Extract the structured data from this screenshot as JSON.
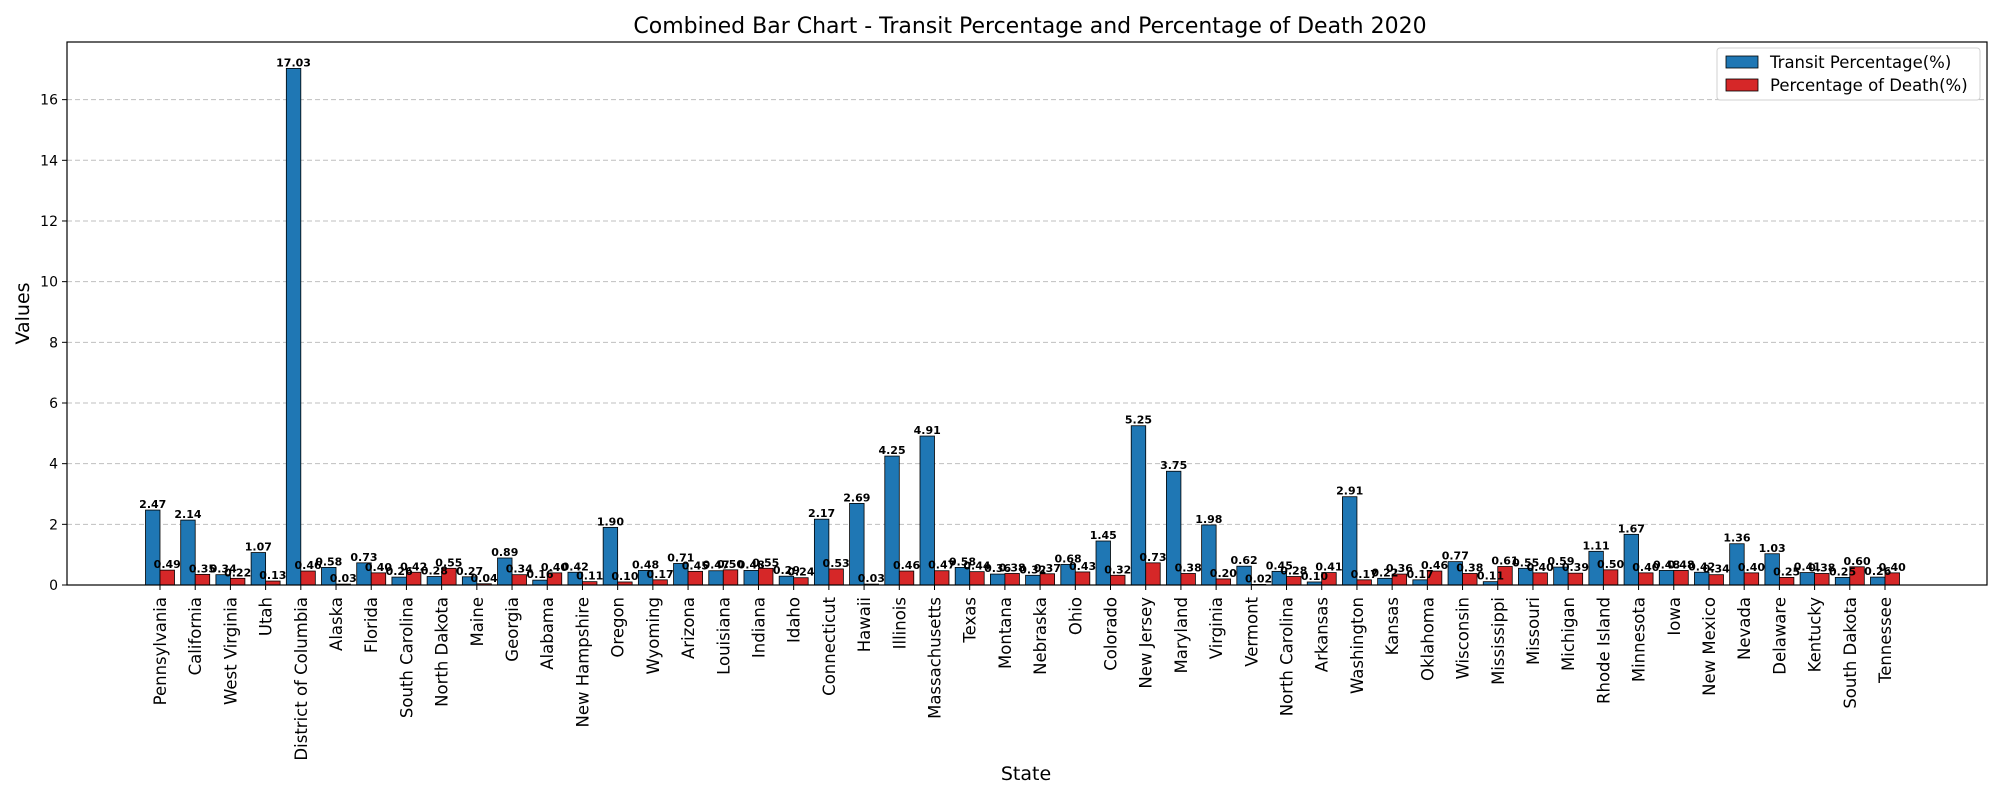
{
  "chart_data": {
    "type": "bar",
    "title": "Combined Bar Chart - Transit Percentage and Percentage of Death 2020",
    "xlabel": "State",
    "ylabel": "Values",
    "ylim": [
      0,
      17.9
    ],
    "yticks": [
      0,
      2,
      4,
      6,
      8,
      10,
      12,
      14,
      16
    ],
    "grid": "y-dashed",
    "legend_position": "top-right",
    "categories": [
      "Pennsylvania",
      "California",
      "West Virginia",
      "Utah",
      "District of Columbia",
      "Alaska",
      "Florida",
      "South Carolina",
      "North Dakota",
      "Maine",
      "Georgia",
      "Alabama",
      "New Hampshire",
      "Oregon",
      "Wyoming",
      "Arizona",
      "Louisiana",
      "Indiana",
      "Idaho",
      "Connecticut",
      "Hawaii",
      "Illinois",
      "Massachusetts",
      "Texas",
      "Montana",
      "Nebraska",
      "Ohio",
      "Colorado",
      "New Jersey",
      "Maryland",
      "Virginia",
      "Vermont",
      "North Carolina",
      "Arkansas",
      "Washington",
      "Kansas",
      "Oklahoma",
      "Wisconsin",
      "Mississippi",
      "Missouri",
      "Michigan",
      "Rhode Island",
      "Minnesota",
      "Iowa",
      "New Mexico",
      "Nevada",
      "Delaware",
      "Kentucky",
      "South Dakota",
      "Tennessee"
    ],
    "series": [
      {
        "name": "Transit Percentage(%)",
        "color": "#1f77b4",
        "values": [
          2.47,
          2.14,
          0.34,
          1.07,
          17.03,
          0.58,
          0.73,
          0.26,
          0.28,
          0.27,
          0.89,
          0.16,
          0.42,
          1.9,
          0.48,
          0.71,
          0.47,
          0.48,
          0.29,
          2.17,
          2.69,
          4.25,
          4.91,
          0.58,
          0.36,
          0.32,
          0.68,
          1.45,
          5.25,
          3.75,
          1.98,
          0.62,
          0.45,
          0.1,
          2.91,
          0.22,
          0.17,
          0.77,
          0.11,
          0.55,
          0.59,
          1.11,
          1.67,
          0.48,
          0.42,
          1.36,
          1.03,
          0.41,
          0.25,
          0.26
        ],
        "labels": [
          "2.47",
          "2.14",
          "0.34",
          "1.07",
          "17.03",
          "0.58",
          "0.73",
          "0.26",
          "0.28",
          "0.27",
          "0.89",
          "0.16",
          "0.42",
          "1.90",
          "0.48",
          "0.71",
          "0.47",
          "0.48",
          "0.29",
          "2.17",
          "2.69",
          "4.25",
          "4.91",
          "0.58",
          "0.36",
          "0.32",
          "0.68",
          "1.45",
          "5.25",
          "3.75",
          "1.98",
          "0.62",
          "0.45",
          "0.10",
          "2.91",
          "0.22",
          "0.17",
          "0.77",
          "0.11",
          "0.55",
          "0.59",
          "1.11",
          "1.67",
          "0.48",
          "0.42",
          "1.36",
          "1.03",
          "0.41",
          "0.25",
          "0.26"
        ]
      },
      {
        "name": "Percentage of Death(%)",
        "color": "#d62728",
        "values": [
          0.49,
          0.35,
          0.22,
          0.13,
          0.46,
          0.03,
          0.4,
          0.42,
          0.55,
          0.04,
          0.34,
          0.4,
          0.11,
          0.1,
          0.17,
          0.45,
          0.5,
          0.55,
          0.24,
          0.53,
          0.03,
          0.46,
          0.47,
          0.44,
          0.38,
          0.37,
          0.43,
          0.32,
          0.73,
          0.38,
          0.2,
          0.02,
          0.28,
          0.41,
          0.17,
          0.36,
          0.46,
          0.38,
          0.61,
          0.4,
          0.39,
          0.5,
          0.4,
          0.48,
          0.34,
          0.4,
          0.25,
          0.38,
          0.6,
          0.4
        ],
        "labels": [
          "0.49",
          "0.35",
          "0.22",
          "0.13",
          "0.46",
          "0.03",
          "0.40",
          "0.42",
          "0.55",
          "0.04",
          "0.34",
          "0.40",
          "0.11",
          "0.10",
          "0.17",
          "0.45",
          "0.50",
          "0.55",
          "0.24",
          "0.53",
          "0.03",
          "0.46",
          "0.47",
          "0.44",
          "0.38",
          "0.37",
          "0.43",
          "0.32",
          "0.73",
          "0.38",
          "0.20",
          "0.02",
          "0.28",
          "0.41",
          "0.17",
          "0.36",
          "0.46",
          "0.38",
          "0.61",
          "0.40",
          "0.39",
          "0.50",
          "0.40",
          "0.48",
          "0.34",
          "0.40",
          "0.25",
          "0.38",
          "0.60",
          "0.40"
        ]
      }
    ]
  }
}
